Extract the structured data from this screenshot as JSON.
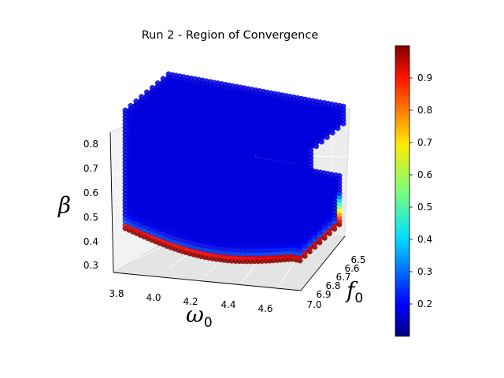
{
  "chart_data": {
    "type": "scatter",
    "dimensions": 3,
    "title": "Run 2 - Region of Convergence",
    "xlabel": {
      "symbol": "ω",
      "subscript": "0"
    },
    "ylabel": {
      "symbol": "f",
      "subscript": "0"
    },
    "zlabel": {
      "symbol": "β",
      "subscript": ""
    },
    "x_ticks": [
      "3.8",
      "4.0",
      "4.2",
      "4.4",
      "4.6"
    ],
    "y_ticks": [
      "6.5",
      "6.6",
      "6.7",
      "6.8",
      "6.9",
      "7.0"
    ],
    "z_ticks": [
      "0.3",
      "0.4",
      "0.5",
      "0.6",
      "0.7",
      "0.8"
    ],
    "xlim": [
      3.75,
      4.7
    ],
    "ylim": [
      6.45,
      7.05
    ],
    "zlim": [
      0.27,
      0.83
    ],
    "colormap": "jet",
    "colorbar": {
      "ticks": [
        "0.2",
        "0.3",
        "0.4",
        "0.5",
        "0.6",
        "0.7",
        "0.8",
        "0.9"
      ],
      "range": [
        0.1,
        1.0
      ]
    },
    "color_value_description": "low (about 0.1) on the interior, rising toward 1.0 along the bottom edge",
    "region": {
      "shape": "c-shaped solid region with a notch cut out of the upper-right side",
      "beta_range": [
        0.3,
        0.83
      ],
      "omega0_range": [
        3.8,
        4.7
      ],
      "f0_range": [
        6.45,
        7.0
      ]
    },
    "grid": true,
    "legend": "none"
  }
}
